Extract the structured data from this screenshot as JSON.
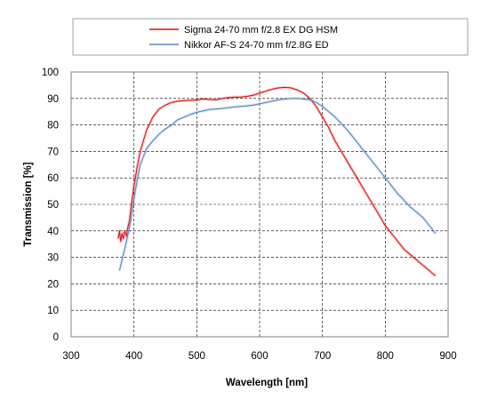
{
  "chart_data": {
    "type": "line",
    "title": "",
    "xlabel": "Wavelength [nm]",
    "ylabel": "Transmission [%]",
    "xlim": [
      300,
      900
    ],
    "ylim": [
      0,
      100
    ],
    "x_ticks": [
      300,
      400,
      500,
      600,
      700,
      800,
      900
    ],
    "y_ticks": [
      0,
      10,
      20,
      30,
      40,
      50,
      60,
      70,
      80,
      90,
      100
    ],
    "grid": "dashed",
    "legend_position": "top",
    "series": [
      {
        "name": "Sigma 24-70 mm f/2.8 EX DG HSM",
        "color": "#dd1111",
        "points": [
          [
            375,
            37
          ],
          [
            377,
            40
          ],
          [
            379,
            36
          ],
          [
            381,
            39
          ],
          [
            383,
            37
          ],
          [
            385,
            40
          ],
          [
            388,
            38
          ],
          [
            390,
            41
          ],
          [
            393,
            44
          ],
          [
            396,
            50
          ],
          [
            400,
            57
          ],
          [
            405,
            64
          ],
          [
            410,
            70
          ],
          [
            420,
            78
          ],
          [
            430,
            83
          ],
          [
            440,
            86
          ],
          [
            450,
            87.5
          ],
          [
            460,
            88.5
          ],
          [
            470,
            89
          ],
          [
            480,
            89.2
          ],
          [
            490,
            89.3
          ],
          [
            500,
            89.5
          ],
          [
            510,
            89.8
          ],
          [
            520,
            89.6
          ],
          [
            530,
            89.5
          ],
          [
            540,
            90
          ],
          [
            550,
            90.3
          ],
          [
            560,
            90.5
          ],
          [
            570,
            90.5
          ],
          [
            580,
            90.8
          ],
          [
            590,
            91.2
          ],
          [
            600,
            92
          ],
          [
            610,
            92.8
          ],
          [
            620,
            93.5
          ],
          [
            630,
            94
          ],
          [
            640,
            94.2
          ],
          [
            650,
            94
          ],
          [
            660,
            93.2
          ],
          [
            670,
            92
          ],
          [
            680,
            90
          ],
          [
            690,
            87
          ],
          [
            700,
            83
          ],
          [
            710,
            79
          ],
          [
            720,
            74
          ],
          [
            730,
            70
          ],
          [
            740,
            66
          ],
          [
            750,
            62
          ],
          [
            760,
            58
          ],
          [
            770,
            54
          ],
          [
            780,
            50
          ],
          [
            790,
            46
          ],
          [
            800,
            42
          ],
          [
            810,
            39
          ],
          [
            820,
            36
          ],
          [
            830,
            33
          ],
          [
            840,
            31
          ],
          [
            850,
            29
          ],
          [
            860,
            27
          ],
          [
            870,
            25
          ],
          [
            880,
            23
          ]
        ]
      },
      {
        "name": "Nikkor AF-S 24-70 mm f/2.8G ED",
        "color": "#5b86c4",
        "points": [
          [
            377,
            25
          ],
          [
            380,
            28
          ],
          [
            385,
            33
          ],
          [
            390,
            38
          ],
          [
            395,
            44
          ],
          [
            400,
            52
          ],
          [
            405,
            59
          ],
          [
            410,
            65
          ],
          [
            420,
            71
          ],
          [
            430,
            74
          ],
          [
            440,
            76.5
          ],
          [
            450,
            78.5
          ],
          [
            460,
            80
          ],
          [
            470,
            82
          ],
          [
            480,
            83
          ],
          [
            490,
            84
          ],
          [
            500,
            84.8
          ],
          [
            510,
            85.3
          ],
          [
            520,
            85.8
          ],
          [
            530,
            86
          ],
          [
            540,
            86.2
          ],
          [
            550,
            86.5
          ],
          [
            560,
            86.8
          ],
          [
            570,
            87
          ],
          [
            580,
            87.2
          ],
          [
            590,
            87.5
          ],
          [
            600,
            88
          ],
          [
            610,
            88.5
          ],
          [
            620,
            89
          ],
          [
            630,
            89.5
          ],
          [
            640,
            89.8
          ],
          [
            650,
            90
          ],
          [
            660,
            90
          ],
          [
            670,
            89.8
          ],
          [
            680,
            89.5
          ],
          [
            690,
            88.5
          ],
          [
            700,
            87
          ],
          [
            710,
            85
          ],
          [
            720,
            83
          ],
          [
            730,
            80.5
          ],
          [
            740,
            78
          ],
          [
            750,
            75
          ],
          [
            760,
            72
          ],
          [
            770,
            69
          ],
          [
            780,
            66
          ],
          [
            790,
            63
          ],
          [
            800,
            60
          ],
          [
            810,
            57
          ],
          [
            820,
            54
          ],
          [
            830,
            51.5
          ],
          [
            840,
            49
          ],
          [
            850,
            47
          ],
          [
            860,
            45
          ],
          [
            870,
            42
          ],
          [
            880,
            39
          ]
        ]
      }
    ]
  }
}
